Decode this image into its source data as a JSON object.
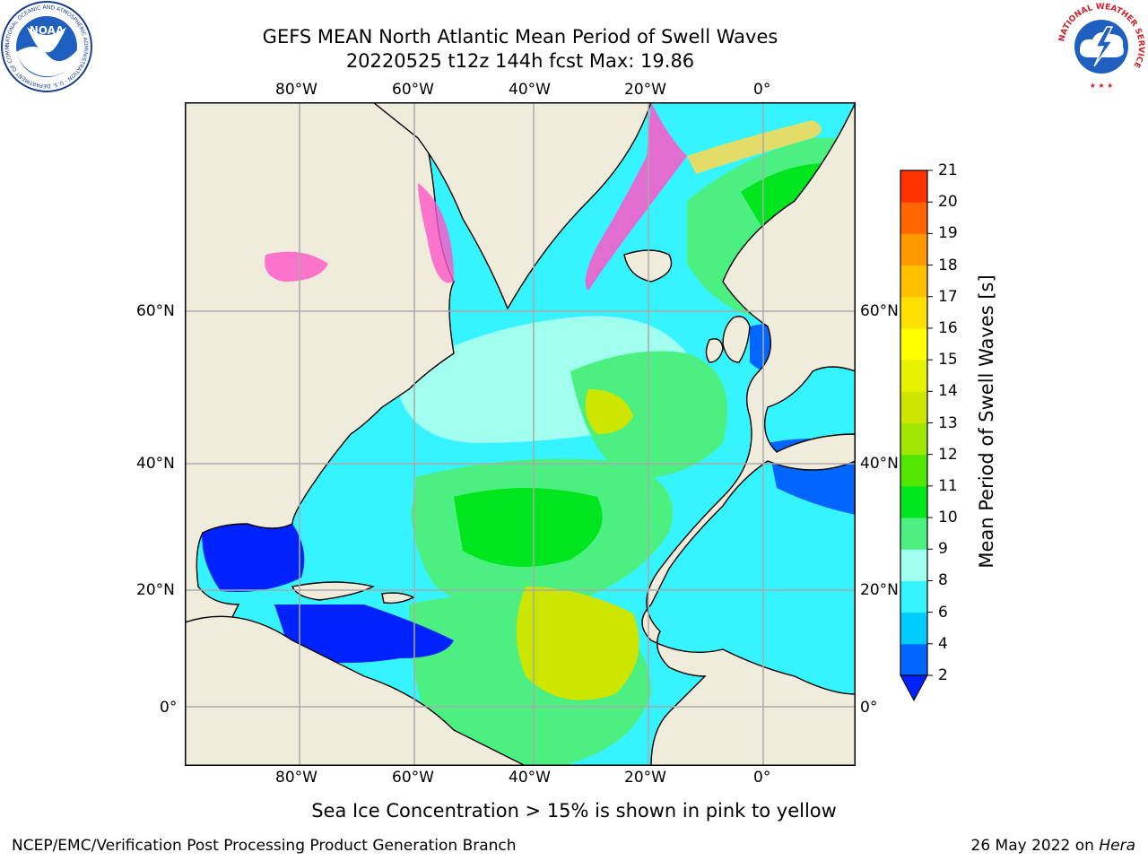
{
  "header": {
    "title_line1": "GEFS MEAN North Atlantic Mean Period of Swell Waves",
    "title_line2": "20220525 t12z 144h fcst   Max: 19.86"
  },
  "map": {
    "lon_ticks": [
      "80°W",
      "60°W",
      "40°W",
      "20°W",
      "0°"
    ],
    "lat_ticks": [
      "60°N",
      "40°N",
      "20°N",
      "0°"
    ],
    "colors": {
      "land": "#efecdc",
      "ocean_default": "#36f4ff",
      "ice": "#ff55c8"
    }
  },
  "colorbar": {
    "title": "Mean Period of Swell Waves [s]",
    "ticks": [
      "2",
      "4",
      "6",
      "8",
      "9",
      "10",
      "11",
      "12",
      "13",
      "14",
      "15",
      "16",
      "17",
      "18",
      "19",
      "20",
      "21"
    ],
    "colors": [
      "#0066ff",
      "#00ccff",
      "#36f4ff",
      "#a0ffee",
      "#4cf080",
      "#00e61e",
      "#52e600",
      "#a0e600",
      "#cce600",
      "#e6f200",
      "#ffff00",
      "#ffe000",
      "#ffc000",
      "#ff9900",
      "#ff6600",
      "#ff3300",
      "#ff0000"
    ],
    "extend_color": "#0022ff"
  },
  "caption": "Sea Ice Concentration > 15% is shown in pink to yellow",
  "footer": {
    "left": "NCEP/EMC/Verification Post Processing Product Generation Branch",
    "right_date": "26 May 2022 on ",
    "right_host": "Hera"
  },
  "logos": {
    "noaa_label": "NOAA",
    "noaa_ring_text": "NATIONAL OCEANIC AND ATMOSPHERIC ADMINISTRATION · U.S. DEPARTMENT OF COMMERCE",
    "nws_ring_text": "NATIONAL WEATHER SERVICE"
  }
}
